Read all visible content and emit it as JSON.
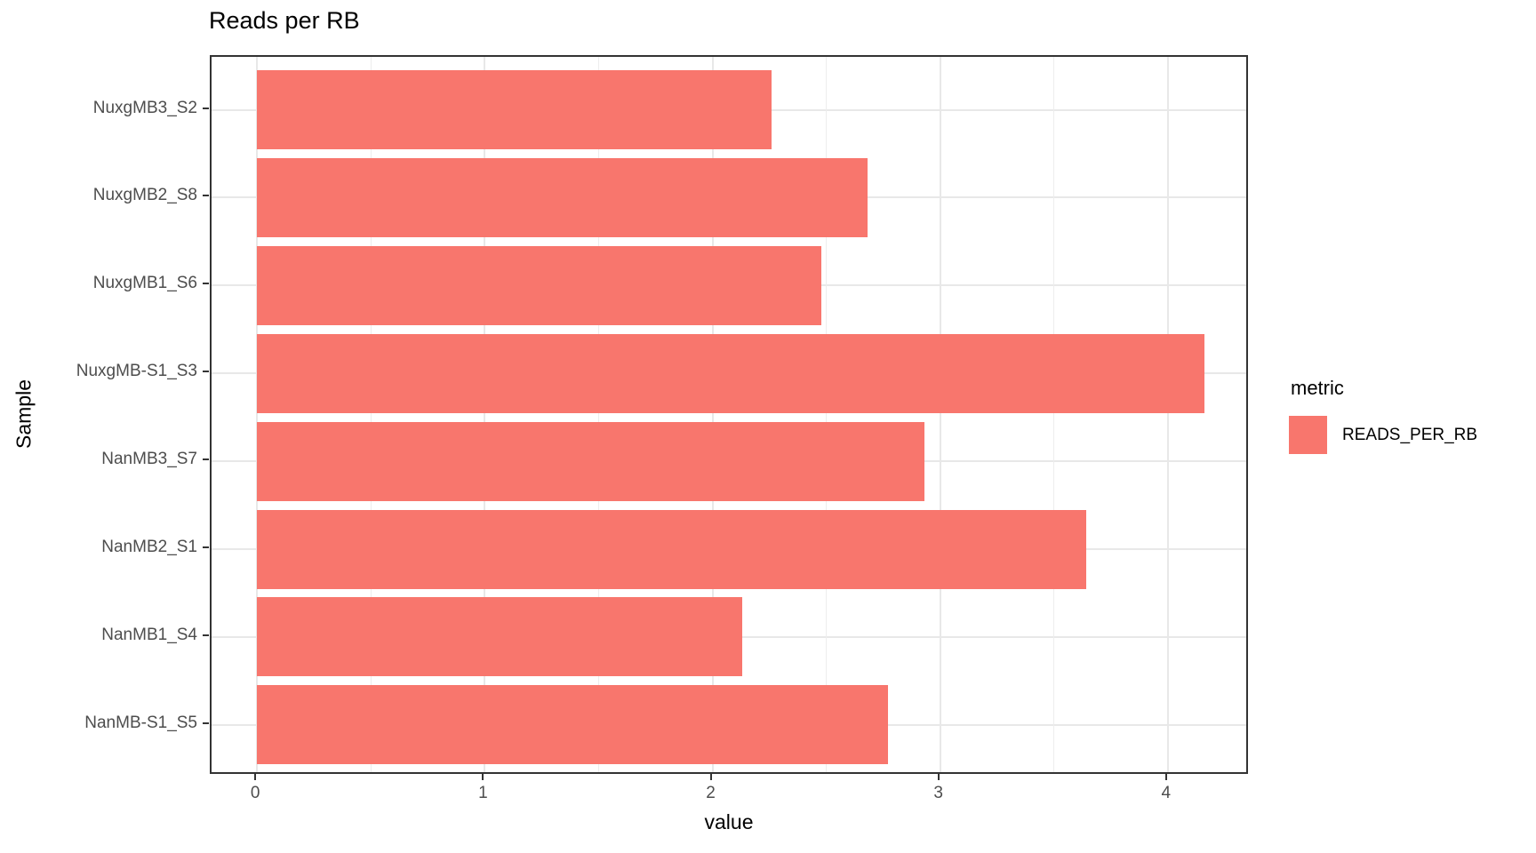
{
  "chart_data": {
    "type": "bar",
    "orientation": "horizontal",
    "title": "Reads per RB",
    "xlabel": "value",
    "ylabel": "Sample",
    "categories": [
      "NuxgMB3_S2",
      "NuxgMB2_S8",
      "NuxgMB1_S6",
      "NuxgMB-S1_S3",
      "NanMB3_S7",
      "NanMB2_S1",
      "NanMB1_S4",
      "NanMB-S1_S5"
    ],
    "series": [
      {
        "name": "READS_PER_RB",
        "values": [
          2.26,
          2.68,
          2.48,
          4.16,
          2.93,
          3.64,
          2.13,
          2.77
        ]
      }
    ],
    "x_ticks": [
      0,
      1,
      2,
      3,
      4
    ],
    "x_minor_ticks": [
      0.5,
      1.5,
      2.5,
      3.5
    ],
    "xlim": [
      -0.2,
      4.36
    ],
    "grid": "major-and-minor",
    "legend": {
      "title": "metric",
      "position": "right",
      "entries": [
        {
          "label": "READS_PER_RB",
          "color": "#F8766D"
        }
      ]
    },
    "colors": {
      "bar_fill": "#F8766D",
      "grid_major": "#E8E8E8",
      "grid_minor": "#EDEDED",
      "panel_border": "#333333",
      "axis_text": "#4D4D4D",
      "title_text": "#000000"
    }
  }
}
